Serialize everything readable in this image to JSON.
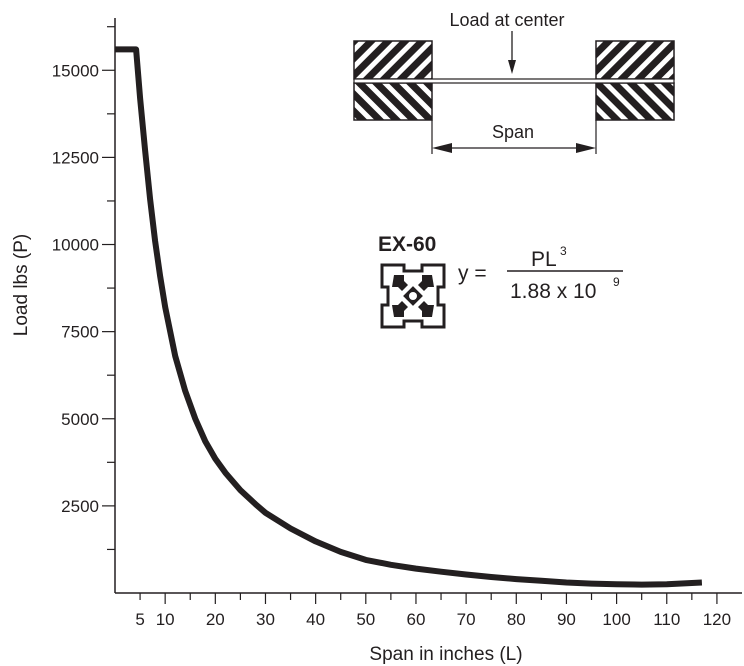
{
  "chart_data": {
    "type": "line",
    "title": "",
    "xlabel": "Span in inches (L)",
    "ylabel": "Load lbs (P)",
    "xlim": [
      0,
      125
    ],
    "ylim": [
      0,
      16500
    ],
    "x_ticks": [
      5,
      10,
      20,
      30,
      40,
      50,
      60,
      70,
      80,
      90,
      100,
      110,
      120
    ],
    "y_ticks": [
      2500,
      5000,
      7500,
      10000,
      12500,
      15000
    ],
    "grid": false,
    "series": [
      {
        "x": [
          0,
          2,
          4,
          4.2,
          5,
          6,
          7,
          8,
          9,
          10,
          12,
          14,
          16,
          18,
          20,
          22,
          25,
          28,
          30,
          35,
          40,
          45,
          50,
          55,
          60,
          65,
          70,
          75,
          80,
          85,
          90,
          95,
          100,
          105,
          110,
          117
        ],
        "y": [
          15600,
          15600,
          15600,
          15600,
          14200,
          12700,
          11300,
          10100,
          9100,
          8200,
          6800,
          5800,
          5000,
          4350,
          3850,
          3450,
          2950,
          2550,
          2300,
          1850,
          1480,
          1180,
          950,
          810,
          700,
          610,
          530,
          460,
          400,
          350,
          300,
          270,
          250,
          240,
          250,
          300
        ]
      }
    ]
  },
  "annotations": {
    "load_label": "Load at center",
    "span_label": "Span",
    "profile_name": "EX-60",
    "formula_y": "y =",
    "formula_numerator": "PL",
    "formula_numerator_exp": "3",
    "formula_denominator": "1.88 x 10",
    "formula_denominator_exp": "9"
  }
}
